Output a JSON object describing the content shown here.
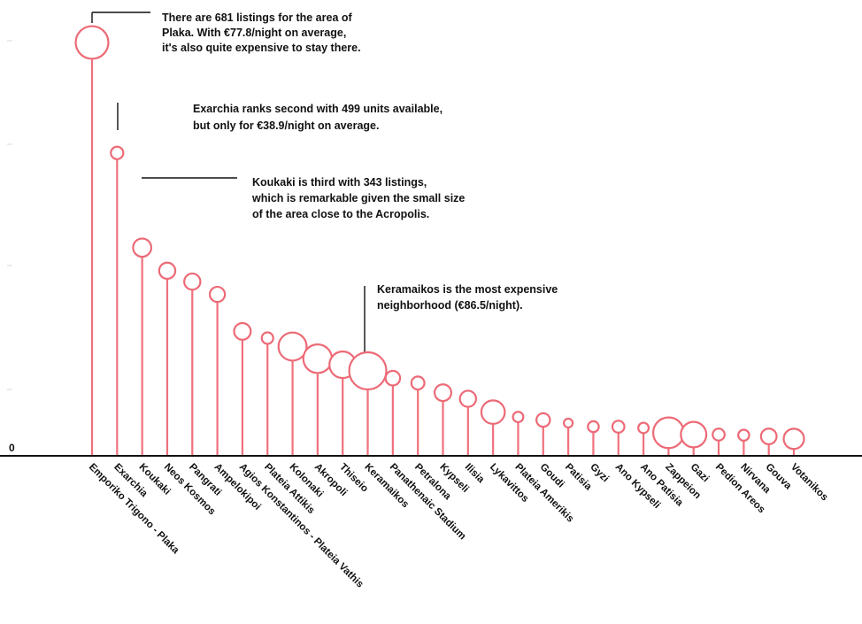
{
  "chart_data": {
    "type": "lollipop",
    "y_axis_label": "0",
    "encoding": "stem height = number of listings; circle size = average price per night",
    "categories": [
      "Emporiko Trigono - Plaka",
      "Exarchia",
      "Koukaki",
      "Neos Kosmos",
      "Pangrati",
      "Ampelokipoi",
      "Agios Konstantinos - Plateia Vathis",
      "Plateia Attikis",
      "Kolonaki",
      "Akropoli",
      "Thiseio",
      "Keramaikos",
      "Panathenaic Stadium",
      "Petralona",
      "Kypseli",
      "Ilisia",
      "Lykavittos",
      "Plateia Amerikis",
      "Goudi",
      "Patisia",
      "Gyzi",
      "Ano Kypseli",
      "Ano Patisia",
      "Zappeion",
      "Gazi",
      "Pedion Areos",
      "Nirvana",
      "Gouva",
      "Votanikos"
    ],
    "listings": [
      681,
      499,
      343,
      305,
      287,
      266,
      205,
      194,
      180,
      160,
      150,
      140,
      128,
      120,
      104,
      94,
      72,
      64,
      59,
      54,
      48,
      48,
      46,
      38,
      35,
      35,
      34,
      32,
      28
    ],
    "avg_price_per_night": [
      77.8,
      38.9,
      50.0,
      46.0,
      46.0,
      44.0,
      47.0,
      37.0,
      69.0,
      70.0,
      66.0,
      86.5,
      43.0,
      40.0,
      47.0,
      46.0,
      60.0,
      35.0,
      41.0,
      32.0,
      36.0,
      38.0,
      35.0,
      74.0,
      64.0,
      38.0,
      36.0,
      45.0,
      54.0
    ],
    "annotations": [
      {
        "id": "plaka",
        "lines": [
          "There are 681 listings for the area of",
          "Plaka. With €77.8/night on average,",
          "it's also quite expensive to stay there."
        ]
      },
      {
        "id": "exarchia",
        "lines": [
          "Exarchia ranks second with 499 units available,",
          "but only for €38.9/night on average."
        ]
      },
      {
        "id": "koukaki",
        "lines": [
          "Koukaki is third with 343 listings,",
          "which is remarkable given the small size",
          "of the area close to the Acropolis."
        ]
      },
      {
        "id": "keramaikos",
        "lines": [
          "Keramaikos is the most expensive",
          "neighborhood (€86.5/night)."
        ]
      }
    ],
    "colors": {
      "stem": "#f0707c",
      "circle_stroke": "#ec6a76",
      "circle_fill": "#ffffff",
      "axis": "#111111",
      "leader": "#111111"
    }
  }
}
